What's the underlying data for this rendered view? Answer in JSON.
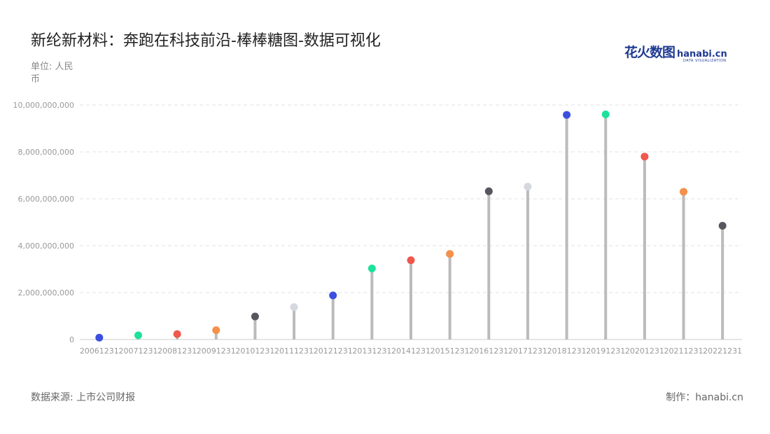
{
  "title": "新纶新材料：奔跑在科技前沿-棒棒糖图-数据可视化",
  "unit_label": "单位: 人民币",
  "logo": {
    "cn": "花火数图",
    "en": "hanabi.cn",
    "sub": "DATA VISUALIZATION"
  },
  "source_label": "数据来源: 上市公司财报",
  "credit_label": "制作：hanabi.cn",
  "colors": [
    "#3b4fe0",
    "#1de39a",
    "#f0574d",
    "#f5904a",
    "#56565f",
    "#d5d8e0"
  ],
  "stem_color": "#bbbbbb",
  "chart_data": {
    "type": "lollipop",
    "title": "新纶新材料：奔跑在科技前沿-棒棒糖图-数据可视化",
    "ylabel": "单位: 人民币",
    "ylim": [
      0,
      10000000000
    ],
    "yticks": [
      0,
      2000000000,
      4000000000,
      6000000000,
      8000000000,
      10000000000
    ],
    "ytick_labels": [
      "0",
      "2,000,000,000",
      "4,000,000,000",
      "6,000,000,000",
      "8,000,000,000",
      "10,000,000,000"
    ],
    "grid": true,
    "categories": [
      "20061231",
      "20071231",
      "20081231",
      "20091231",
      "20101231",
      "20111231",
      "20121231",
      "20131231",
      "20141231",
      "20151231",
      "20161231",
      "20171231",
      "20181231",
      "20191231",
      "20201231",
      "20211231",
      "20221231"
    ],
    "values": [
      80000000,
      180000000,
      230000000,
      400000000,
      980000000,
      1380000000,
      1880000000,
      3030000000,
      3380000000,
      3650000000,
      6320000000,
      6520000000,
      9580000000,
      9600000000,
      7800000000,
      6300000000,
      4850000000
    ]
  }
}
